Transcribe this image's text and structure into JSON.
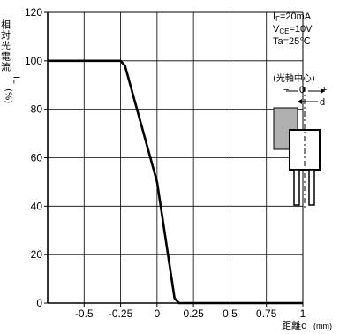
{
  "chart_data": {
    "type": "line",
    "ylabel": "相対光電流",
    "ylabel_sub": "IL",
    "ylabel_unit": "(%)",
    "xlabel": "距離d",
    "xlabel_unit": "(mm)",
    "xlim": [
      -0.75,
      1.0
    ],
    "ylim": [
      0,
      120
    ],
    "grid": true,
    "x_ticks": [
      {
        "value": -0.5,
        "label": "-0.5"
      },
      {
        "value": -0.25,
        "label": "-0.25"
      },
      {
        "value": 0,
        "label": "0"
      },
      {
        "value": 0.25,
        "label": "0.25"
      },
      {
        "value": 0.5,
        "label": "0.5"
      },
      {
        "value": 0.75,
        "label": "0.75"
      },
      {
        "value": 1.0,
        "label": "1"
      }
    ],
    "y_ticks": [
      {
        "value": 0,
        "label": "0"
      },
      {
        "value": 20,
        "label": "20"
      },
      {
        "value": 40,
        "label": "40"
      },
      {
        "value": 60,
        "label": "60"
      },
      {
        "value": 80,
        "label": "80"
      },
      {
        "value": 100,
        "label": "100"
      },
      {
        "value": 120,
        "label": "120"
      }
    ],
    "series": [
      {
        "points": [
          {
            "x": -0.75,
            "y": 100
          },
          {
            "x": -0.3,
            "y": 100
          },
          {
            "x": -0.25,
            "y": 100
          },
          {
            "x": -0.22,
            "y": 98
          },
          {
            "x": 0.0,
            "y": 50
          },
          {
            "x": 0.12,
            "y": 2
          },
          {
            "x": 0.15,
            "y": 0
          },
          {
            "x": 1.0,
            "y": 0
          }
        ]
      }
    ],
    "conditions": [
      {
        "main": "I",
        "sub": "F",
        "value": "=20mA"
      },
      {
        "main": "V",
        "sub": "CE",
        "value": "=10V"
      },
      {
        "main": "Ta",
        "sub": "",
        "value": "=25℃"
      }
    ],
    "inset": {
      "center_label": "(光軸中心)",
      "minus_label": "−",
      "zero_label": "0",
      "plus_label": "+",
      "distance_label": "d"
    }
  }
}
